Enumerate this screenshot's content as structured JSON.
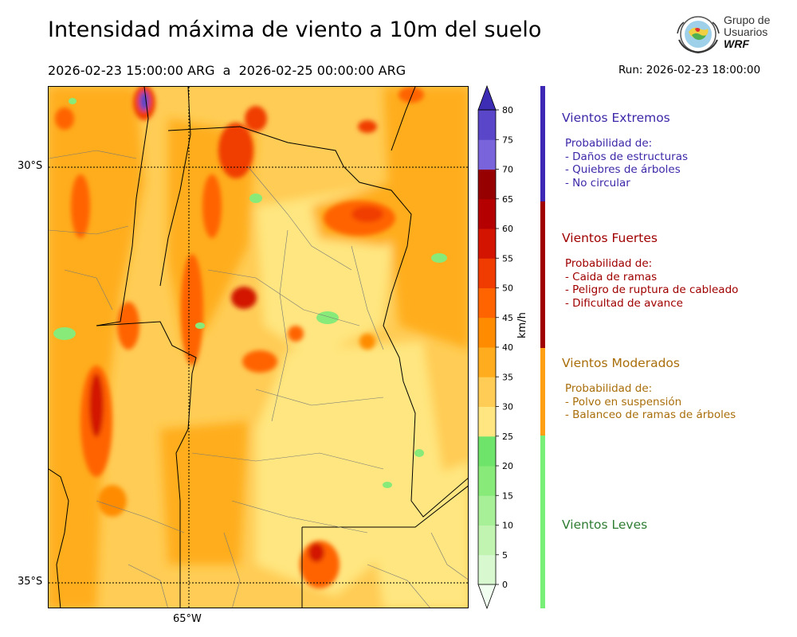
{
  "title": "Intensidad máxima de viento a 10m del suelo",
  "period": "2026-02-23 15:00:00 ARG  a  2026-02-25 00:00:00 ARG",
  "run": "Run: 2026-02-23 18:00:00",
  "logo": {
    "line1": "Grupo de",
    "line2": "Usuarios",
    "line3": "WRF"
  },
  "map": {
    "lat_labels": [
      "30°S",
      "35°S"
    ],
    "lon_labels": [
      "65°W"
    ]
  },
  "colorbar": {
    "unit": "km/h",
    "ticks": [
      "0",
      "5",
      "10",
      "15",
      "20",
      "25",
      "30",
      "35",
      "40",
      "45",
      "50",
      "55",
      "60",
      "65",
      "70",
      "75",
      "80"
    ],
    "colors": [
      "#f0fff0",
      "#d8f8d0",
      "#c0f4b0",
      "#a8f098",
      "#88ea78",
      "#6ee46a",
      "#ffe680",
      "#ffcc55",
      "#ffad1e",
      "#ff8c00",
      "#ff6400",
      "#f03c00",
      "#d21400",
      "#b40000",
      "#960000",
      "#7a64dc",
      "#5a46c8",
      "#3c2db4"
    ]
  },
  "categories": [
    {
      "title": "Vientos Extremos",
      "color": "#3c28a8",
      "bar_color": "#3c28b4",
      "lines": [
        "Probabilidad de:",
        "- Daños de estructuras",
        "- Quiebres de árboles",
        "- No circular"
      ]
    },
    {
      "title": "Vientos Fuertes",
      "color": "#a00000",
      "bar_color": "#a00000",
      "lines": [
        "Probabilidad de:",
        "- Caida de ramas",
        "- Peligro de ruptura de cableado",
        "- Dificultad de avance"
      ]
    },
    {
      "title": "Vientos Moderados",
      "color": "#a86e0a",
      "bar_color": "#ffa014",
      "lines": [
        "Probabilidad de:",
        "- Polvo en suspensión",
        "- Balanceo de ramas de árboles"
      ]
    },
    {
      "title": "Vientos Leves",
      "color": "#2e7d32",
      "bar_color": "#78f078",
      "lines": []
    }
  ]
}
